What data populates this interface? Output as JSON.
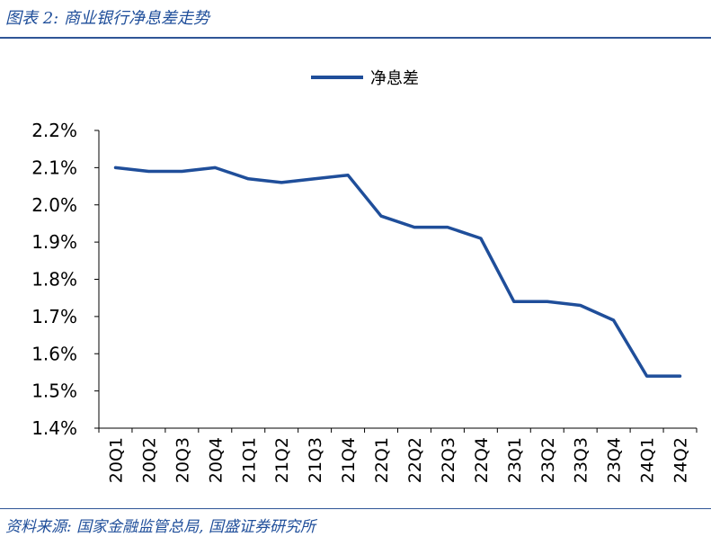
{
  "figure": {
    "title": "图表 2:  商业银行净息差走势",
    "source": "资料来源:  国家金融监管总局, 国盛证券研究所"
  },
  "colors": {
    "series": "#1f4e9a",
    "text": "#1f4e9a",
    "axis": "#000000"
  },
  "chart_data": {
    "type": "line",
    "categories": [
      "20Q1",
      "20Q2",
      "20Q3",
      "20Q4",
      "21Q1",
      "21Q2",
      "21Q3",
      "21Q4",
      "22Q1",
      "22Q2",
      "22Q3",
      "22Q4",
      "23Q1",
      "23Q2",
      "23Q3",
      "23Q4",
      "24Q1",
      "24Q2"
    ],
    "series": [
      {
        "name": "净息差",
        "values": [
          2.1,
          2.09,
          2.09,
          2.1,
          2.07,
          2.06,
          2.07,
          2.08,
          1.97,
          1.94,
          1.94,
          1.91,
          1.74,
          1.74,
          1.73,
          1.69,
          1.54,
          1.54
        ]
      }
    ],
    "ylim": [
      1.4,
      2.2
    ],
    "yticks": [
      "1.4%",
      "1.5%",
      "1.6%",
      "1.7%",
      "1.8%",
      "1.9%",
      "2.0%",
      "2.1%",
      "2.2%"
    ],
    "legend_position": "top-center",
    "grid": false
  }
}
